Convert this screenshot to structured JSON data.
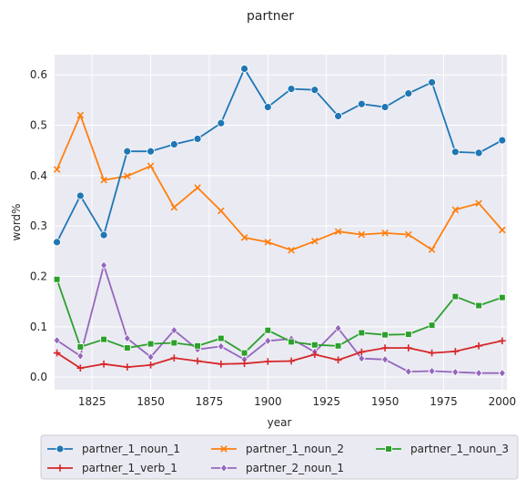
{
  "chart_data": {
    "type": "line",
    "title": "partner",
    "xlabel": "year",
    "ylabel": "word%",
    "xlim": [
      1809,
      2002
    ],
    "ylim": [
      -0.025,
      0.64
    ],
    "xticks": [
      1825,
      1850,
      1875,
      1900,
      1925,
      1950,
      1975,
      2000
    ],
    "yticks": [
      0.0,
      0.1,
      0.2,
      0.3,
      0.4,
      0.5,
      0.6
    ],
    "ytick_labels": [
      "0.0",
      "0.1",
      "0.2",
      "0.3",
      "0.4",
      "0.5",
      "0.6"
    ],
    "grid": true,
    "legend_position": "bottom",
    "x": [
      1810,
      1820,
      1830,
      1840,
      1850,
      1860,
      1870,
      1880,
      1890,
      1900,
      1910,
      1920,
      1930,
      1940,
      1950,
      1960,
      1970,
      1980,
      1990,
      2000
    ],
    "series": [
      {
        "name": "partner_1_noun_1",
        "color": "#1f77b4",
        "marker": "circle",
        "values": [
          0.268,
          0.36,
          0.282,
          0.448,
          0.448,
          0.462,
          0.473,
          0.504,
          0.612,
          0.536,
          0.572,
          0.57,
          0.518,
          0.542,
          0.536,
          0.563,
          0.585,
          0.447,
          0.445,
          0.47
        ]
      },
      {
        "name": "partner_1_noun_2",
        "color": "#ff7f0e",
        "marker": "x",
        "values": [
          0.412,
          0.52,
          0.391,
          0.399,
          0.419,
          0.337,
          0.376,
          0.33,
          0.277,
          0.268,
          0.252,
          0.27,
          0.289,
          0.283,
          0.286,
          0.283,
          0.253,
          0.332,
          0.345,
          0.292
        ]
      },
      {
        "name": "partner_1_noun_3",
        "color": "#2ca02c",
        "marker": "square",
        "values": [
          0.194,
          0.06,
          0.075,
          0.058,
          0.066,
          0.068,
          0.062,
          0.077,
          0.048,
          0.093,
          0.07,
          0.064,
          0.062,
          0.088,
          0.084,
          0.085,
          0.103,
          0.16,
          0.142,
          0.158
        ]
      },
      {
        "name": "partner_1_verb_1",
        "color": "#d62728",
        "marker": "plus",
        "values": [
          0.048,
          0.018,
          0.026,
          0.02,
          0.024,
          0.038,
          0.032,
          0.026,
          0.027,
          0.031,
          0.032,
          0.045,
          0.034,
          0.05,
          0.058,
          0.058,
          0.048,
          0.051,
          0.062,
          0.072
        ]
      },
      {
        "name": "partner_2_noun_1",
        "color": "#9467bd",
        "marker": "diamond",
        "values": [
          0.073,
          0.042,
          0.222,
          0.077,
          0.04,
          0.093,
          0.055,
          0.061,
          0.035,
          0.072,
          0.076,
          0.05,
          0.097,
          0.037,
          0.035,
          0.011,
          0.012,
          0.01,
          0.008,
          0.008
        ]
      }
    ]
  }
}
